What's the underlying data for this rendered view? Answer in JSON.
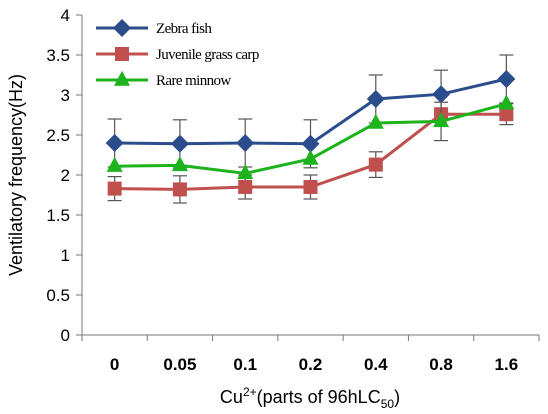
{
  "chart_data": {
    "type": "line",
    "categories": [
      "0",
      "0.05",
      "0.1",
      "0.2",
      "0.4",
      "0.8",
      "1.6"
    ],
    "xlabel": {
      "base": "Cu",
      "sup": "2+",
      "mid": "(parts of 96hLC",
      "sub": "50",
      "end": ")"
    },
    "ylabel": "Ventilatory frequency(Hz)",
    "ylim": [
      0,
      4
    ],
    "yticks": [
      "0",
      "0.5",
      "1",
      "1.5",
      "2",
      "2.5",
      "3",
      "3.5",
      "4"
    ],
    "grid": false,
    "legend_position": "top-left",
    "series": [
      {
        "name": "Zebra fish",
        "color": "#2b4d8c",
        "marker": "diamond",
        "values": [
          2.4,
          2.39,
          2.4,
          2.39,
          2.95,
          3.01,
          3.2
        ],
        "errors": [
          0.3,
          0.3,
          0.3,
          0.3,
          0.3,
          0.3,
          0.3
        ]
      },
      {
        "name": "Juvenile grass carp",
        "color": "#c0504d",
        "marker": "square",
        "values": [
          1.83,
          1.82,
          1.85,
          1.85,
          2.13,
          2.76,
          2.76
        ],
        "errors": [
          0.15,
          0.17,
          0.15,
          0.15,
          0.16,
          0.0,
          0.13
        ]
      },
      {
        "name": "Rare minnow",
        "color": "#1db31d",
        "marker": "triangle",
        "values": [
          2.11,
          2.12,
          2.02,
          2.2,
          2.65,
          2.67,
          2.89
        ],
        "errors": [
          0.0,
          0.0,
          0.0,
          0.0,
          0.0,
          0.24,
          0.0
        ]
      }
    ]
  }
}
